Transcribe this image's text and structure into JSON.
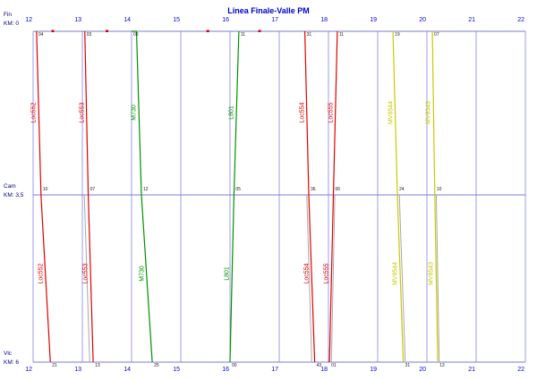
{
  "title": "Linea Finale-Valle PM",
  "colors": {
    "grid": "#9b9bef",
    "station_line": "#7b7bd6",
    "hour_text": "#0000e6",
    "station_text": "#00007a",
    "minute_text": "#1a1a1a",
    "mark": "#e00000"
  },
  "hours": [
    "12",
    "13",
    "14",
    "15",
    "16",
    "17",
    "18",
    "19",
    "20",
    "21",
    "22"
  ],
  "stations": [
    {
      "name": "Fin",
      "km": "KM: 0"
    },
    {
      "name": "Cam",
      "km": "KM: 3,5"
    },
    {
      "name": "Vlc",
      "km": "KM: 6"
    }
  ],
  "chart_data": {
    "type": "line",
    "title": "Linea Finale-Valle PM",
    "x_unit": "hours",
    "x_range": [
      12,
      22
    ],
    "y_stations": [
      {
        "name": "Fin",
        "km": 0
      },
      {
        "name": "Cam",
        "km": 3.5
      },
      {
        "name": "Vlc",
        "km": 6
      }
    ],
    "trains": [
      {
        "name": "Loc552",
        "color": "#e00000",
        "stops": [
          {
            "station": "Fin",
            "t": 12.07,
            "m": "04"
          },
          {
            "station": "Cam",
            "t": 12.16,
            "m": "10"
          },
          {
            "station": "Vlc",
            "t": 12.35,
            "m": "21"
          }
        ]
      },
      {
        "name": "Loc553",
        "color": "#e00000",
        "stops": [
          {
            "station": "Fin",
            "t": 13.05,
            "m": "03"
          },
          {
            "station": "Cam",
            "t": 13.12,
            "m": "07"
          },
          {
            "station": "Vlc",
            "t": 13.22,
            "m": "13"
          }
        ]
      },
      {
        "name": "M730",
        "color": "#009000",
        "stops": [
          {
            "station": "Fin",
            "t": 14.0,
            "m": "00"
          },
          {
            "station": "Fin",
            "t": 14.1
          },
          {
            "station": "Cam",
            "t": 14.2,
            "m": "12"
          },
          {
            "station": "Vlc",
            "t": 14.42,
            "m": "25"
          }
        ]
      },
      {
        "name": "L801",
        "color": "#009000",
        "stops": [
          {
            "station": "Vlc",
            "t": 16.0,
            "m": "00"
          },
          {
            "station": "Cam",
            "t": 16.08,
            "m": "05"
          },
          {
            "station": "Fin",
            "t": 16.18,
            "m": "11"
          }
        ]
      },
      {
        "name": "Loc554",
        "color": "#e00000",
        "stops": [
          {
            "station": "Fin",
            "t": 17.52,
            "m": "31"
          },
          {
            "station": "Cam",
            "t": 17.6,
            "m": "36"
          },
          {
            "station": "Vlc",
            "t": 17.72,
            "m": "43"
          }
        ]
      },
      {
        "name": "Loc555",
        "color": "#e00000",
        "stops": [
          {
            "station": "Vlc",
            "t": 18.02,
            "m": "01"
          },
          {
            "station": "Cam",
            "t": 18.1,
            "m": "06"
          },
          {
            "station": "Fin",
            "t": 18.18,
            "m": "11"
          }
        ]
      },
      {
        "name": "MV8544",
        "color": "#c9c900",
        "stops": [
          {
            "station": "Fin",
            "t": 19.31,
            "m": "19"
          },
          {
            "station": "Cam",
            "t": 19.4,
            "m": "24"
          },
          {
            "station": "Vlc",
            "t": 19.52,
            "m": "31"
          }
        ]
      },
      {
        "name": "MV8543",
        "color": "#c9c900",
        "stops": [
          {
            "station": "Fin",
            "t": 20.11,
            "m": "07"
          },
          {
            "station": "Cam",
            "t": 20.16,
            "m": "10"
          },
          {
            "station": "Vlc",
            "t": 20.22,
            "m": "13"
          }
        ]
      }
    ],
    "secondary_paths": [
      {
        "color": "#a8a8a8",
        "stops": [
          {
            "station": "Cam",
            "t": 13.04
          },
          {
            "station": "Vlc",
            "t": 13.15
          }
        ]
      },
      {
        "color": "#a8a8a8",
        "stops": [
          {
            "station": "Cam",
            "t": 17.56
          },
          {
            "station": "Vlc",
            "t": 17.66
          }
        ]
      },
      {
        "color": "#a8a8a8",
        "stops": [
          {
            "station": "Cam",
            "t": 18.13
          },
          {
            "station": "Vlc",
            "t": 18.06
          }
        ]
      },
      {
        "color": "#a8a8a8",
        "stops": [
          {
            "station": "Cam",
            "t": 19.44
          },
          {
            "station": "Vlc",
            "t": 19.56
          }
        ]
      },
      {
        "color": "#a8a8a8",
        "stops": [
          {
            "station": "Cam",
            "t": 20.19
          },
          {
            "station": "Vlc",
            "t": 20.25
          }
        ]
      }
    ],
    "top_marks_t": [
      12.4,
      13.5,
      15.55,
      16.6
    ]
  }
}
